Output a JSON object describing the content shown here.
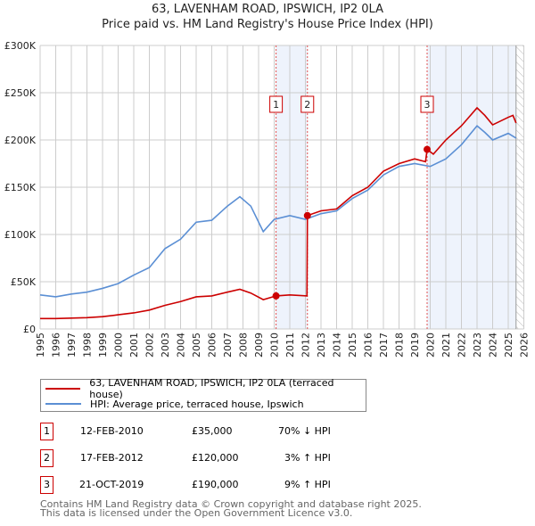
{
  "title": "63, LAVENHAM ROAD, IPSWICH, IP2 0LA",
  "subtitle": "Price paid vs. HM Land Registry's House Price Index (HPI)",
  "chart_data": {
    "type": "line",
    "ylim": [
      0,
      300000
    ],
    "xlim": [
      1995,
      2026
    ],
    "yticks": [
      {
        "v": 0,
        "label": "£0"
      },
      {
        "v": 50000,
        "label": "£50K"
      },
      {
        "v": 100000,
        "label": "£100K"
      },
      {
        "v": 150000,
        "label": "£150K"
      },
      {
        "v": 200000,
        "label": "£200K"
      },
      {
        "v": 250000,
        "label": "£250K"
      },
      {
        "v": 300000,
        "label": "£300K"
      }
    ],
    "xticks": [
      "1995",
      "1996",
      "1997",
      "1998",
      "1999",
      "2000",
      "2001",
      "2002",
      "2003",
      "2004",
      "2005",
      "2006",
      "2007",
      "2008",
      "2009",
      "2010",
      "2011",
      "2012",
      "2013",
      "2014",
      "2015",
      "2016",
      "2017",
      "2018",
      "2019",
      "2020",
      "2021",
      "2022",
      "2023",
      "2024",
      "2025",
      "2026"
    ],
    "grid": true,
    "series": [
      {
        "name": "63, LAVENHAM ROAD, IPSWICH, IP2 0LA (terraced house)",
        "color": "#cc0000",
        "x": [
          1995,
          1996,
          1997,
          1998,
          1999,
          2000,
          2001,
          2002,
          2003,
          2004,
          2005,
          2006,
          2007,
          2007.8,
          2008.5,
          2009.3,
          2010.12,
          2011,
          2012.1,
          2012.13,
          2013,
          2014,
          2015,
          2016,
          2017,
          2018,
          2019,
          2019.7,
          2019.8,
          2020.2,
          2021,
          2022,
          2023,
          2023.5,
          2024,
          2025,
          2025.3,
          2025.5
        ],
        "y": [
          11000,
          11000,
          11500,
          12000,
          13000,
          15000,
          17000,
          20000,
          25000,
          29000,
          34000,
          35000,
          39000,
          42000,
          38000,
          31000,
          35000,
          36000,
          35000,
          120000,
          125000,
          127000,
          141000,
          150000,
          167000,
          175000,
          180000,
          177000,
          190000,
          185000,
          200000,
          215000,
          234000,
          226000,
          216000,
          224000,
          226000,
          218000
        ]
      },
      {
        "name": "HPI: Average price, terraced house, Ipswich",
        "color": "#5b8fd4",
        "x": [
          1995,
          1996,
          1997,
          1998,
          1999,
          2000,
          2001,
          2002,
          2003,
          2004,
          2005,
          2006,
          2007,
          2007.8,
          2008.5,
          2009.3,
          2010,
          2011,
          2012,
          2013,
          2014,
          2015,
          2016,
          2017,
          2018,
          2019,
          2020,
          2021,
          2022,
          2023,
          2023.5,
          2024,
          2025,
          2025.5
        ],
        "y": [
          36000,
          34000,
          37000,
          39000,
          43000,
          48000,
          57000,
          65000,
          85000,
          95000,
          113000,
          115000,
          130000,
          140000,
          130000,
          103000,
          116000,
          120000,
          116000,
          122000,
          125000,
          138000,
          147000,
          163000,
          172000,
          175000,
          172000,
          180000,
          195000,
          215000,
          208000,
          200000,
          207000,
          202000
        ]
      }
    ],
    "sales": [
      {
        "id": "1",
        "x": 2010.12,
        "y": 35000
      },
      {
        "id": "2",
        "x": 2012.13,
        "y": 120000
      },
      {
        "id": "3",
        "x": 2019.8,
        "y": 190000
      }
    ],
    "shaded": [
      [
        2010.12,
        2012.13
      ],
      [
        2019.8,
        2025.5
      ]
    ],
    "data_end": 2025.5
  },
  "legend": [
    "63, LAVENHAM ROAD, IPSWICH, IP2 0LA (terraced house)",
    "HPI: Average price, terraced house, Ipswich"
  ],
  "table": [
    {
      "id": "1",
      "date": "12-FEB-2010",
      "price": "£35,000",
      "hpi": "70% ↓ HPI"
    },
    {
      "id": "2",
      "date": "17-FEB-2012",
      "price": "£120,000",
      "hpi": "3% ↑ HPI"
    },
    {
      "id": "3",
      "date": "21-OCT-2019",
      "price": "£190,000",
      "hpi": "9% ↑ HPI"
    }
  ],
  "footer": [
    "Contains HM Land Registry data © Crown copyright and database right 2025.",
    "This data is licensed under the Open Government Licence v3.0."
  ]
}
